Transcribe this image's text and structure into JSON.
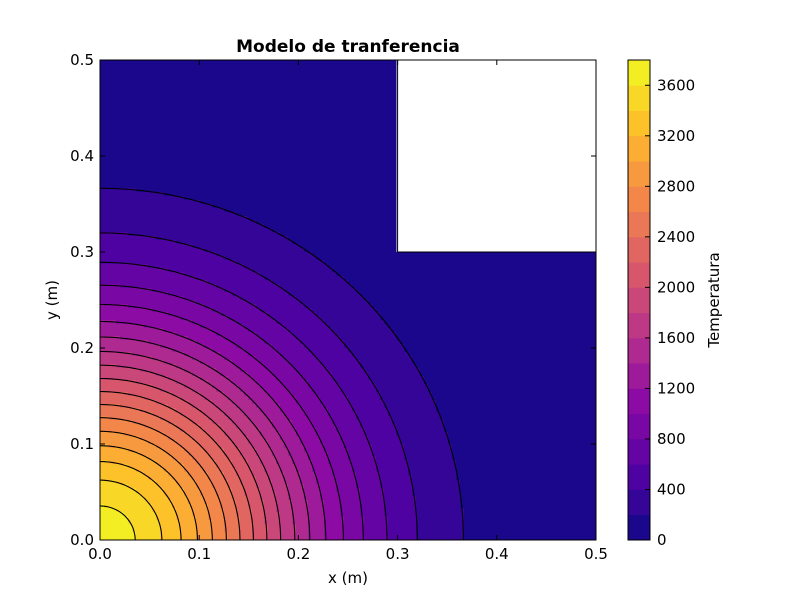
{
  "chart_data": {
    "type": "contourf",
    "title": "Modelo de tranferencia",
    "xlabel": "x (m)",
    "ylabel": "y (m)",
    "xlim": [
      0.0,
      0.5
    ],
    "ylim": [
      0.0,
      0.5
    ],
    "xticks": [
      "0.0",
      "0.1",
      "0.2",
      "0.3",
      "0.4",
      "0.5"
    ],
    "yticks": [
      "0.0",
      "0.1",
      "0.2",
      "0.3",
      "0.4",
      "0.5"
    ],
    "grid": false,
    "colormap": "plasma",
    "colorbar": {
      "label": "Temperatura",
      "range": [
        0,
        3800
      ],
      "ticks": [
        0,
        400,
        800,
        1200,
        1600,
        2000,
        2400,
        2800,
        3200,
        3600
      ],
      "level_step": 200
    },
    "contour_levels": [
      200,
      400,
      600,
      800,
      1000,
      1200,
      1400,
      1600,
      1800,
      2000,
      2200,
      2400,
      2600,
      2800,
      3000,
      3200,
      3400,
      3600
    ],
    "masked_region": {
      "x": [
        0.3,
        0.5
      ],
      "y": [
        0.3,
        0.5
      ],
      "color": "#ffffff"
    },
    "hot_corner": {
      "x": 0.0,
      "y": 0.0,
      "max_value": 3800
    },
    "cold_boundary_value": 0
  }
}
